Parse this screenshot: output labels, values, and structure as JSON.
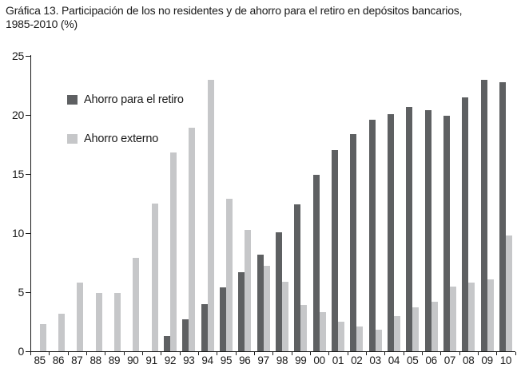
{
  "title": {
    "line1": "Gráfica 13. Participación de los no residentes y de ahorro para el retiro en depósitos bancarios,",
    "line2": "1985-2010 (%)"
  },
  "colors": {
    "series_retiro": "#5e6062",
    "series_externo": "#c6c7c9",
    "axis": "#1a1a1a",
    "text": "#1a1a1a",
    "background": "#ffffff"
  },
  "chart_data": {
    "type": "bar",
    "title": "Gráfica 13. Participación de los no residentes y de ahorro para el retiro en depósitos bancarios, 1985-2010 (%)",
    "categories": [
      "85",
      "86",
      "87",
      "88",
      "89",
      "90",
      "91",
      "92",
      "93",
      "94",
      "95",
      "96",
      "97",
      "98",
      "99",
      "00",
      "01",
      "02",
      "03",
      "04",
      "05",
      "06",
      "07",
      "08",
      "09",
      "10"
    ],
    "series": [
      {
        "name": "Ahorro para el retiro",
        "color": "#5e6062",
        "values": [
          0,
          0,
          0,
          0,
          0,
          0,
          0,
          1.3,
          2.7,
          4.0,
          5.4,
          6.7,
          8.2,
          10.1,
          12.4,
          14.9,
          17.0,
          18.4,
          19.6,
          20.1,
          20.7,
          20.4,
          19.9,
          21.5,
          23.0,
          22.8
        ]
      },
      {
        "name": "Ahorro externo",
        "color": "#c6c7c9",
        "values": [
          2.3,
          3.2,
          5.8,
          4.9,
          4.9,
          7.9,
          12.5,
          16.8,
          18.9,
          23.0,
          12.9,
          10.3,
          7.2,
          5.9,
          3.9,
          3.3,
          2.5,
          2.1,
          1.8,
          3.0,
          3.7,
          4.2,
          5.5,
          5.8,
          6.1,
          9.8
        ]
      }
    ],
    "xlabel": "",
    "ylabel": "",
    "ylim": [
      0,
      25
    ],
    "yticks": [
      0,
      5,
      10,
      15,
      20,
      25
    ],
    "grid": false,
    "legend_position": "inside-top-left"
  }
}
